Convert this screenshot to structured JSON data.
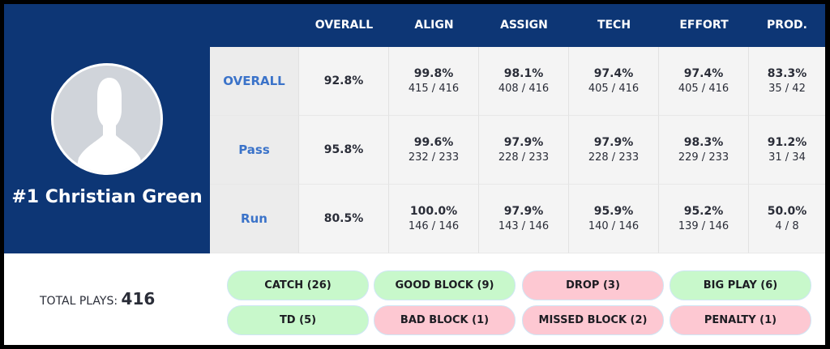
{
  "player": {
    "name": "#1 Christian Green"
  },
  "columns": [
    "OVERALL",
    "ALIGN",
    "ASSIGN",
    "TECH",
    "EFFORT",
    "PROD."
  ],
  "rows": [
    {
      "label": "OVERALL",
      "overall": "92.8%",
      "cells": [
        {
          "pct": "99.8%",
          "frac": "415 / 416"
        },
        {
          "pct": "98.1%",
          "frac": "408 / 416"
        },
        {
          "pct": "97.4%",
          "frac": "405 / 416"
        },
        {
          "pct": "97.4%",
          "frac": "405 / 416"
        },
        {
          "pct": "83.3%",
          "frac": "35 / 42"
        }
      ]
    },
    {
      "label": "Pass",
      "overall": "95.8%",
      "cells": [
        {
          "pct": "99.6%",
          "frac": "232 / 233"
        },
        {
          "pct": "97.9%",
          "frac": "228 / 233"
        },
        {
          "pct": "97.9%",
          "frac": "228 / 233"
        },
        {
          "pct": "98.3%",
          "frac": "229 / 233"
        },
        {
          "pct": "91.2%",
          "frac": "31 / 34"
        }
      ]
    },
    {
      "label": "Run",
      "overall": "80.5%",
      "cells": [
        {
          "pct": "100.0%",
          "frac": "146 / 146"
        },
        {
          "pct": "97.9%",
          "frac": "143 / 146"
        },
        {
          "pct": "95.9%",
          "frac": "140 / 146"
        },
        {
          "pct": "95.2%",
          "frac": "139 / 146"
        },
        {
          "pct": "50.0%",
          "frac": "4 / 8"
        }
      ]
    }
  ],
  "total": {
    "label": "TOTAL PLAYS:",
    "value": "416"
  },
  "tags": [
    {
      "label": "CATCH (26)",
      "type": "good"
    },
    {
      "label": "GOOD BLOCK (9)",
      "type": "good"
    },
    {
      "label": "DROP (3)",
      "type": "bad"
    },
    {
      "label": "BIG PLAY (6)",
      "type": "good"
    },
    {
      "label": "TD (5)",
      "type": "good"
    },
    {
      "label": "BAD BLOCK (1)",
      "type": "bad"
    },
    {
      "label": "MISSED BLOCK (2)",
      "type": "bad"
    },
    {
      "label": "PENALTY (1)",
      "type": "bad"
    }
  ],
  "colors": {
    "brand": "#0d3675",
    "good": "#c8f8cb",
    "bad": "#fdc8d2",
    "label": "#3b73c9"
  }
}
